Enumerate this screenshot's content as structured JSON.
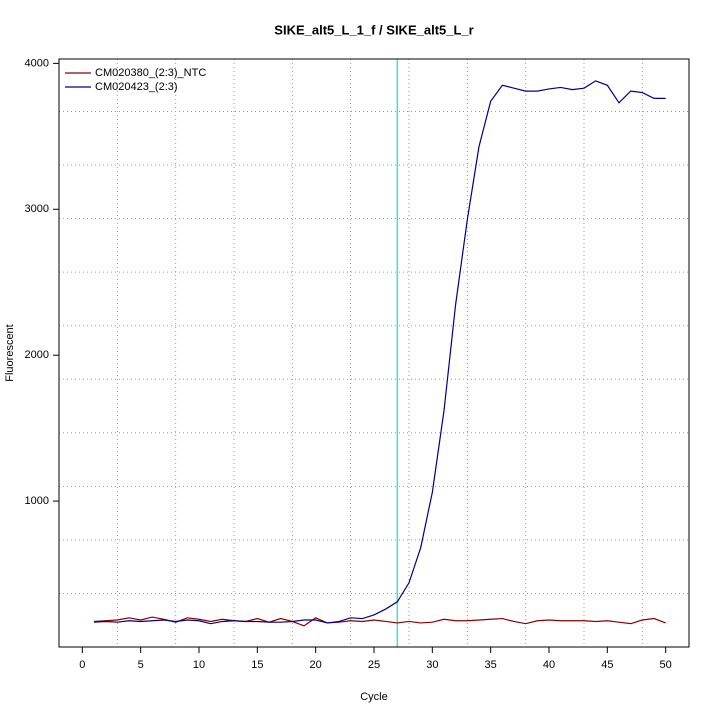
{
  "chart_data": {
    "type": "line",
    "title": "SIKE_alt5_L_1_f / SIKE_alt5_L_r",
    "x_label": "Cycle",
    "y_label": "Fluorescent",
    "x": [
      1,
      2,
      3,
      4,
      5,
      6,
      7,
      8,
      9,
      10,
      11,
      12,
      13,
      14,
      15,
      16,
      17,
      18,
      19,
      20,
      21,
      22,
      23,
      24,
      25,
      26,
      27,
      28,
      29,
      30,
      31,
      32,
      33,
      34,
      35,
      36,
      37,
      38,
      39,
      40,
      41,
      42,
      43,
      44,
      45,
      46,
      47,
      48,
      49,
      50
    ],
    "series": [
      {
        "name": "CM020380_(2:3)_NTC",
        "color": "#8b0000",
        "values": [
          175,
          180,
          185,
          200,
          185,
          205,
          190,
          170,
          200,
          190,
          175,
          190,
          180,
          175,
          195,
          170,
          195,
          175,
          145,
          200,
          165,
          170,
          180,
          175,
          185,
          175,
          165,
          175,
          165,
          170,
          190,
          180,
          180,
          185,
          190,
          195,
          175,
          160,
          180,
          185,
          180,
          180,
          180,
          175,
          180,
          170,
          160,
          185,
          195,
          165
        ]
      },
      {
        "name": "CM020423_(2:3)",
        "color": "#00008b",
        "values": [
          170,
          175,
          170,
          180,
          175,
          180,
          185,
          175,
          185,
          180,
          160,
          175,
          180,
          175,
          175,
          170,
          170,
          175,
          185,
          185,
          165,
          175,
          200,
          195,
          220,
          260,
          310,
          440,
          680,
          1060,
          1620,
          2350,
          2930,
          3430,
          3740,
          3850,
          3830,
          3810,
          3810,
          3825,
          3835,
          3820,
          3830,
          3880,
          3850,
          3730,
          3810,
          3800,
          3760,
          3760
        ]
      }
    ],
    "xlim": [
      -2,
      52
    ],
    "ylim": [
      0,
      4030
    ],
    "xticks": [
      0,
      5,
      10,
      15,
      20,
      25,
      30,
      35,
      40,
      45,
      50
    ],
    "yticks": [
      1000,
      2000,
      3000,
      4000
    ],
    "xgrid": [
      3,
      8,
      13,
      18,
      23,
      28,
      33,
      38,
      43,
      48
    ],
    "ygrid": [
      367,
      734,
      1101,
      1468,
      1835,
      2202,
      2569,
      2936,
      3303,
      3670
    ],
    "threshold_cycle": 27,
    "threshold_color": "#40e0d0",
    "grid": true,
    "legend": "top-left"
  }
}
